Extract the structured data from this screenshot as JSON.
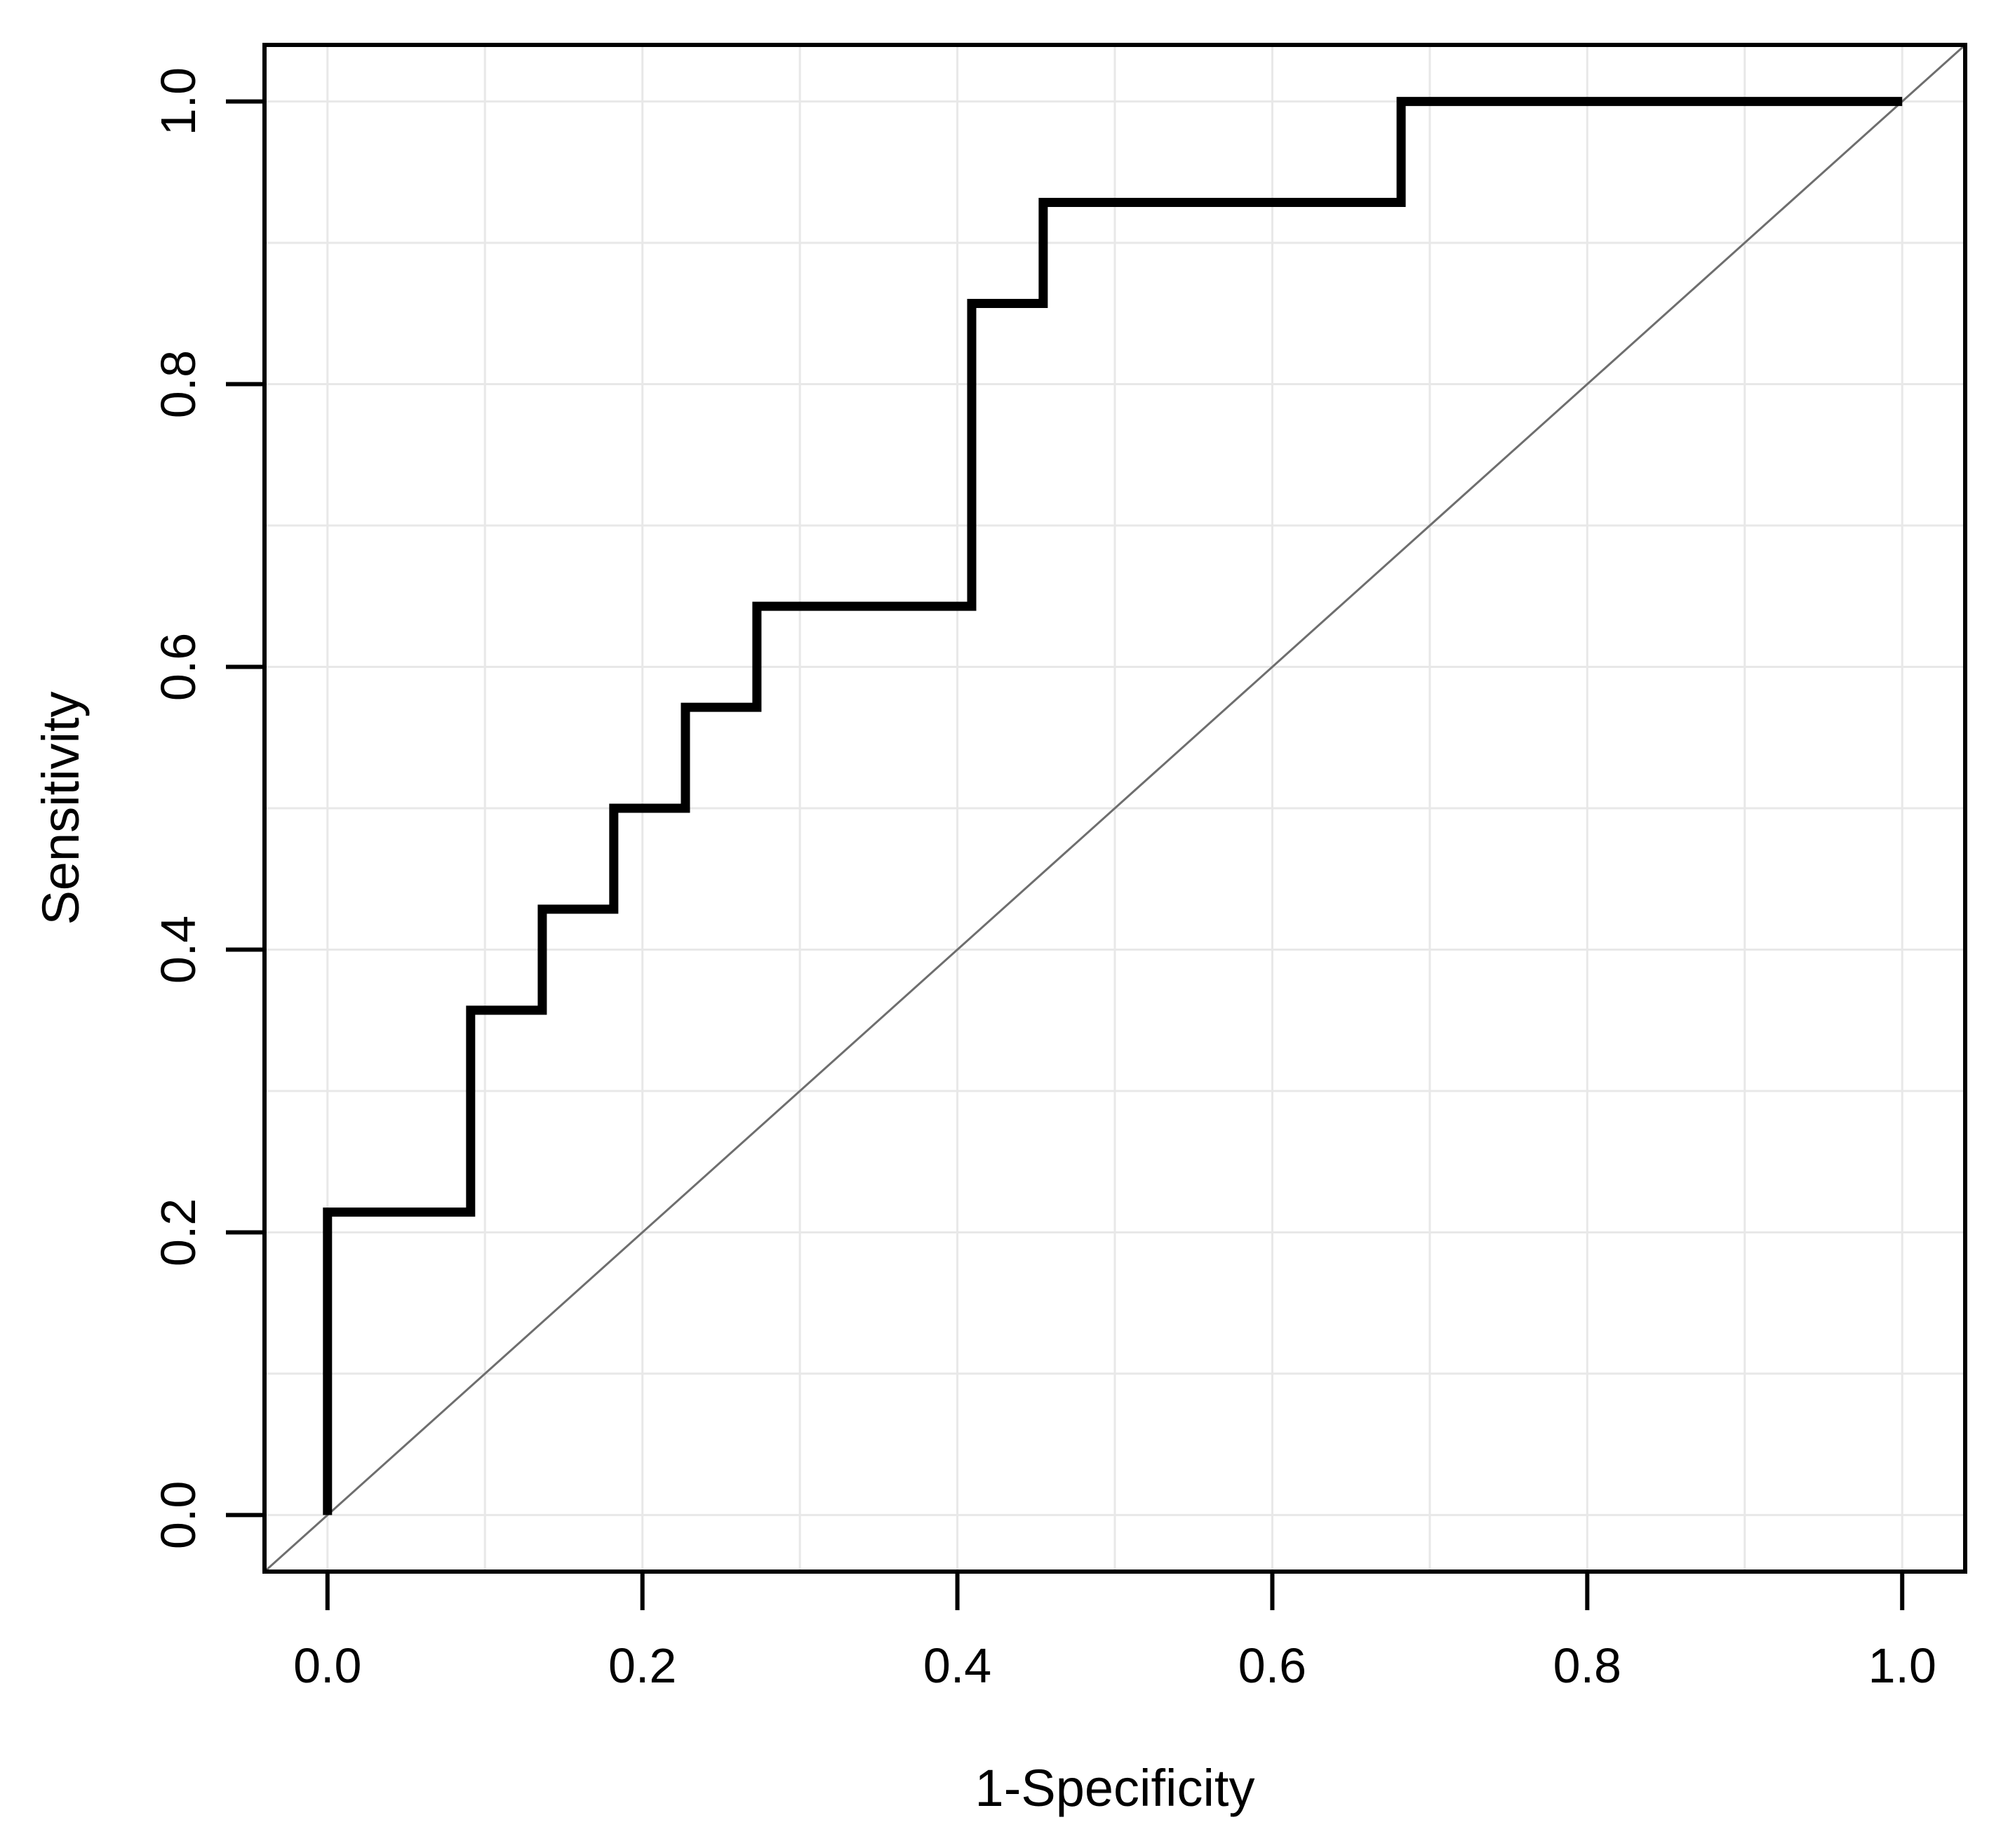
{
  "page": {
    "background": "#ffffff"
  },
  "chart_data": {
    "type": "line",
    "subtype": "roc-step-curve",
    "title": "",
    "xlabel": "1-Specificity",
    "ylabel": "Sensitivity",
    "xlim": [
      -0.04,
      1.04
    ],
    "ylim": [
      -0.04,
      1.04
    ],
    "axis_range": [
      0.0,
      1.0
    ],
    "grid": {
      "on": true,
      "step": 0.1,
      "color": "#e8e8e8"
    },
    "box_color": "#000000",
    "legend": {
      "visible": false
    },
    "x_ticks": [
      {
        "value": 0.0,
        "label": "0.0"
      },
      {
        "value": 0.2,
        "label": "0.2"
      },
      {
        "value": 0.4,
        "label": "0.4"
      },
      {
        "value": 0.6,
        "label": "0.6"
      },
      {
        "value": 0.8,
        "label": "0.8"
      },
      {
        "value": 1.0,
        "label": "1.0"
      }
    ],
    "y_ticks": [
      {
        "value": 0.0,
        "label": "0.0"
      },
      {
        "value": 0.2,
        "label": "0.2"
      },
      {
        "value": 0.4,
        "label": "0.4"
      },
      {
        "value": 0.6,
        "label": "0.6"
      },
      {
        "value": 0.8,
        "label": "0.8"
      },
      {
        "value": 1.0,
        "label": "1.0"
      }
    ],
    "series": [
      {
        "name": "roc-curve",
        "type": "step",
        "color": "#000000",
        "line_width": 13,
        "points": [
          [
            0.0,
            0.0
          ],
          [
            0.0,
            0.2143
          ],
          [
            0.0909,
            0.2143
          ],
          [
            0.0909,
            0.3571
          ],
          [
            0.1364,
            0.3571
          ],
          [
            0.1364,
            0.4286
          ],
          [
            0.1818,
            0.4286
          ],
          [
            0.1818,
            0.5
          ],
          [
            0.2273,
            0.5
          ],
          [
            0.2273,
            0.5714
          ],
          [
            0.2727,
            0.5714
          ],
          [
            0.2727,
            0.6429
          ],
          [
            0.4091,
            0.6429
          ],
          [
            0.4091,
            0.8571
          ],
          [
            0.4545,
            0.8571
          ],
          [
            0.4545,
            0.9286
          ],
          [
            0.6818,
            0.9286
          ],
          [
            0.6818,
            1.0
          ],
          [
            1.0,
            1.0
          ]
        ]
      },
      {
        "name": "chance-diagonal",
        "type": "line",
        "color": "#6e6e6e",
        "line_width": 3,
        "points": [
          [
            -0.04,
            -0.04
          ],
          [
            1.04,
            1.04
          ]
        ]
      }
    ]
  }
}
